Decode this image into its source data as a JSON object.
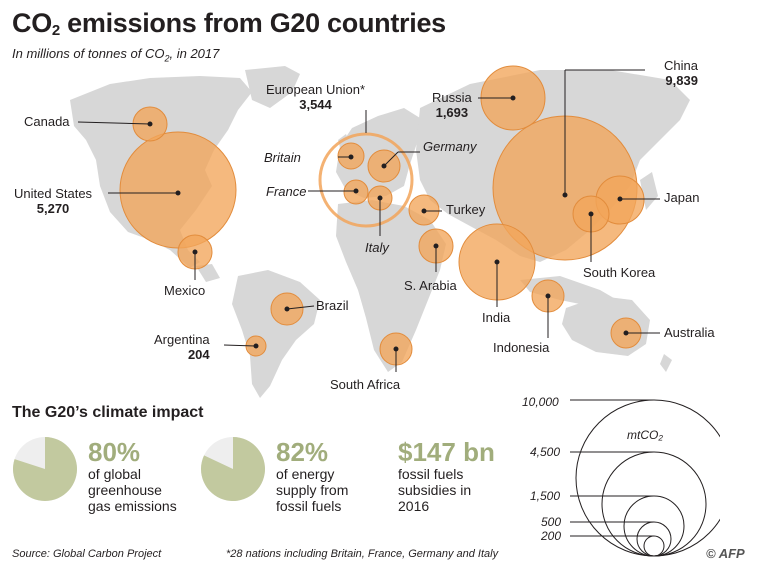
{
  "title_main": "CO",
  "title_sub": "2",
  "title_rest": " emissions from G20 countries",
  "subtitle_a": "In millions of tonnes of CO",
  "subtitle_sub": "2",
  "subtitle_b": ",  in 2017",
  "colors": {
    "bubble": "#f2a55a",
    "bubble_edge": "#e28c3c",
    "land": "#d7d7d7",
    "pie_fill": "#c2c99f",
    "pie_bg": "#eeeeee",
    "accent_text": "#a1ad7c"
  },
  "countries": [
    {
      "name": "Canada",
      "value": ""
    },
    {
      "name": "United States",
      "value": "5,270"
    },
    {
      "name": "Mexico",
      "value": ""
    },
    {
      "name": "Brazil",
      "value": ""
    },
    {
      "name": "Argentina",
      "value": "204"
    },
    {
      "name": "European Union*",
      "value": "3,544"
    },
    {
      "name": "Britain",
      "value": ""
    },
    {
      "name": "Germany",
      "value": ""
    },
    {
      "name": "France",
      "value": ""
    },
    {
      "name": "Italy",
      "value": ""
    },
    {
      "name": "Russia",
      "value": "1,693"
    },
    {
      "name": "Turkey",
      "value": ""
    },
    {
      "name": "S. Arabia",
      "value": ""
    },
    {
      "name": "South Africa",
      "value": ""
    },
    {
      "name": "China",
      "value": "9,839"
    },
    {
      "name": "Japan",
      "value": ""
    },
    {
      "name": "South Korea",
      "value": ""
    },
    {
      "name": "India",
      "value": ""
    },
    {
      "name": "Indonesia",
      "value": ""
    },
    {
      "name": "Australia",
      "value": ""
    }
  ],
  "impact": {
    "title": "The G20’s climate impact",
    "stats": [
      {
        "big": "80%",
        "text": "of global greenhouse gas emissions",
        "fraction": 0.8
      },
      {
        "big": "82%",
        "text": "of energy supply from fossil fuels",
        "fraction": 0.82
      },
      {
        "big": "$147 bn",
        "text": "fossil fuels subsidies in 2016"
      }
    ]
  },
  "scale": {
    "unit": "mtCO₂",
    "values": [
      "10,000",
      "4,500",
      "1,500",
      "500",
      "200"
    ]
  },
  "footer": {
    "source": "Source: Global Carbon Project",
    "note": "*28 nations including Britain, France, Germany and Italy",
    "credit": "AFP"
  }
}
